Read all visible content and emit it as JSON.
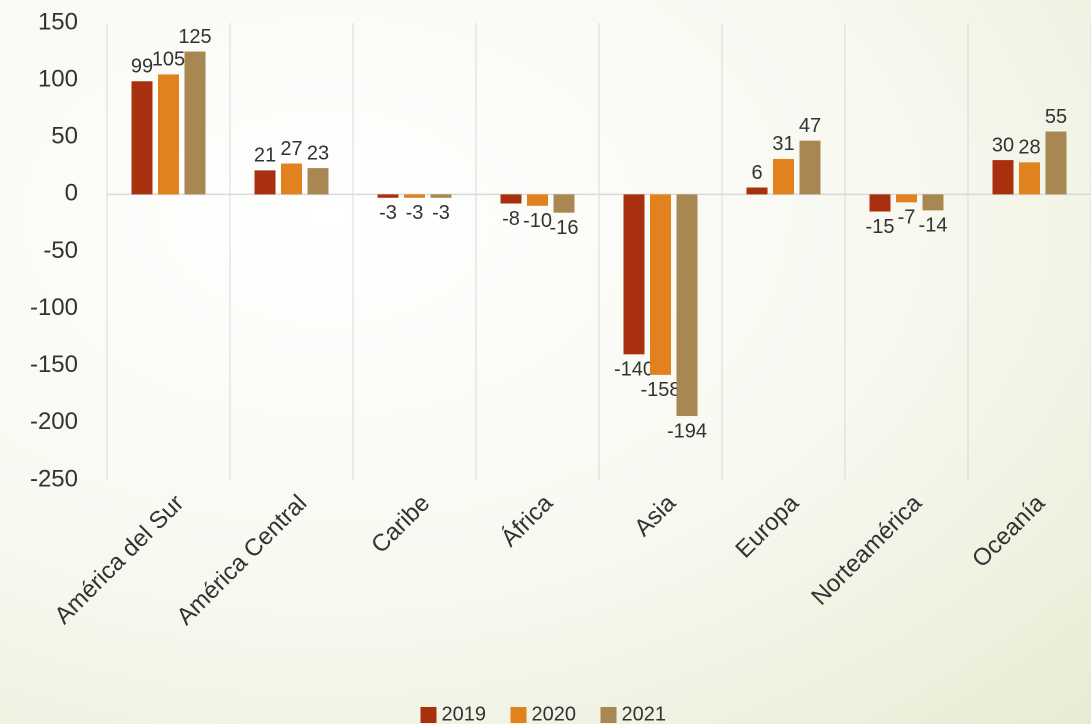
{
  "chart_data": {
    "type": "bar",
    "categories": [
      "América del Sur",
      "América Central",
      "Caribe",
      "África",
      "Asia",
      "Europa",
      "Norteamérica",
      "Oceanía"
    ],
    "series": [
      {
        "name": "2019",
        "color": "#a8300f",
        "values": [
          99,
          21,
          -3,
          -8,
          -140,
          6,
          -15,
          30
        ]
      },
      {
        "name": "2020",
        "color": "#e2821e",
        "values": [
          105,
          27,
          -3,
          -10,
          -158,
          31,
          -7,
          28
        ]
      },
      {
        "name": "2021",
        "color": "#a88752",
        "values": [
          125,
          23,
          -3,
          -16,
          -194,
          47,
          -14,
          55
        ]
      }
    ],
    "ylim": [
      -250,
      150
    ],
    "yticks": [
      150,
      100,
      50,
      0,
      -50,
      -100,
      -150,
      -200,
      -250
    ],
    "legend": "bottom"
  }
}
